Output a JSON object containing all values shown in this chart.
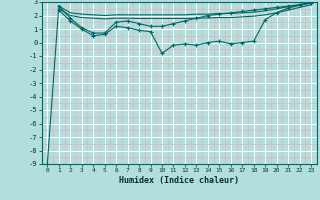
{
  "xlabel": "Humidex (Indice chaleur)",
  "ylabel": "",
  "xlim": [
    -0.5,
    23.5
  ],
  "ylim": [
    -9,
    3
  ],
  "xticks": [
    0,
    1,
    2,
    3,
    4,
    5,
    6,
    7,
    8,
    9,
    10,
    11,
    12,
    13,
    14,
    15,
    16,
    17,
    18,
    19,
    20,
    21,
    22,
    23
  ],
  "yticks": [
    -9,
    -8,
    -7,
    -6,
    -5,
    -4,
    -3,
    -2,
    -1,
    0,
    1,
    2,
    3
  ],
  "bg_color": "#b2dede",
  "grid_major_color": "#ffffff",
  "grid_minor_color": "#e8b4b4",
  "line_color": "#006666",
  "lines": [
    {
      "x": [
        0,
        1,
        2,
        3,
        4,
        5,
        6,
        7,
        8,
        9,
        10,
        11,
        12,
        13,
        14,
        15,
        16,
        17,
        18,
        19,
        20,
        21,
        22,
        23
      ],
      "y": [
        -9.0,
        2.7,
        1.8,
        1.1,
        0.7,
        0.7,
        1.5,
        1.6,
        1.4,
        1.2,
        1.2,
        1.4,
        1.6,
        1.8,
        2.0,
        2.1,
        2.2,
        2.3,
        2.4,
        2.5,
        2.6,
        2.7,
        2.8,
        2.9
      ],
      "marker": true
    },
    {
      "x": [
        1,
        2,
        3,
        4,
        5,
        6,
        7,
        8,
        9,
        10,
        11,
        12,
        13,
        14,
        15,
        16,
        17,
        18,
        19,
        20,
        21,
        22,
        23
      ],
      "y": [
        2.4,
        1.6,
        1.0,
        0.5,
        0.6,
        1.2,
        1.1,
        0.9,
        0.8,
        -0.8,
        -0.2,
        -0.1,
        -0.2,
        -0.0,
        0.1,
        -0.1,
        0.0,
        0.1,
        1.7,
        2.2,
        2.55,
        2.75,
        2.95
      ],
      "marker": true
    },
    {
      "x": [
        1,
        2,
        3,
        4,
        5,
        6,
        7,
        8,
        9,
        10,
        11,
        12,
        13,
        14,
        15,
        16,
        17,
        18,
        19,
        20,
        21,
        22,
        23
      ],
      "y": [
        2.7,
        2.2,
        2.1,
        2.05,
        2.0,
        2.05,
        2.05,
        2.05,
        2.05,
        2.05,
        2.05,
        2.05,
        2.1,
        2.1,
        2.15,
        2.15,
        2.2,
        2.25,
        2.35,
        2.5,
        2.65,
        2.8,
        3.0
      ],
      "marker": false
    },
    {
      "x": [
        1,
        2,
        3,
        4,
        5,
        6,
        7,
        8,
        9,
        10,
        11,
        12,
        13,
        14,
        15,
        16,
        17,
        18,
        19,
        20,
        21,
        22,
        23
      ],
      "y": [
        2.5,
        2.0,
        1.85,
        1.8,
        1.75,
        1.8,
        1.8,
        1.78,
        1.78,
        1.78,
        1.78,
        1.78,
        1.8,
        1.82,
        1.85,
        1.85,
        1.9,
        1.95,
        2.05,
        2.2,
        2.4,
        2.6,
        2.8
      ],
      "marker": false
    }
  ]
}
